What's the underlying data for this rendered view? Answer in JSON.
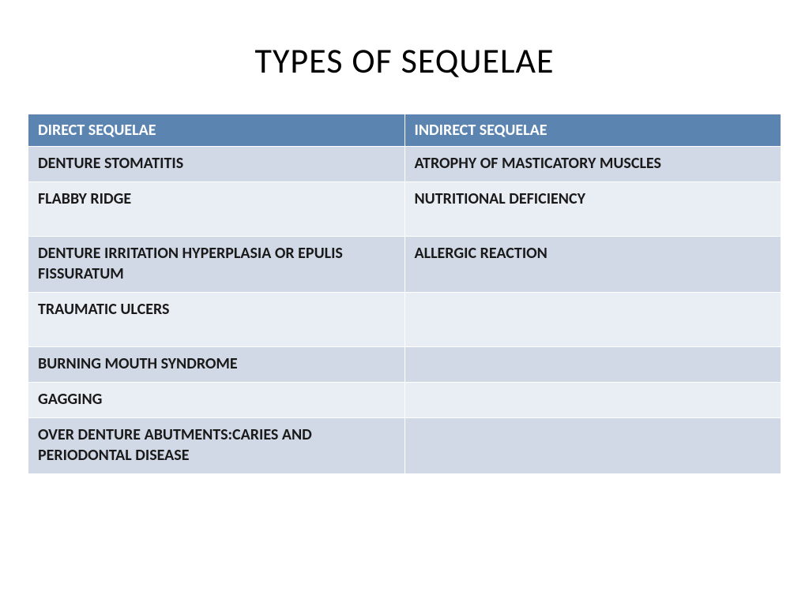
{
  "title": "TYPES OF SEQUELAE",
  "table": {
    "type": "table",
    "header_bg": "#5b84b1",
    "header_fg": "#ffffff",
    "row_bg_odd": "#d1d9e7",
    "row_bg_even": "#e9edf4",
    "cell_fg": "#1a1a1a",
    "border_color": "#ffffff",
    "font_weight": "700",
    "header_fontsize": 20,
    "cell_fontsize": 20,
    "columns": [
      "DIRECT SEQUELAE",
      "INDIRECT SEQUELAE"
    ],
    "rows": [
      [
        "DENTURE STOMATITIS",
        "ATROPHY OF MASTICATORY MUSCLES"
      ],
      [
        "FLABBY RIDGE",
        "NUTRITIONAL DEFICIENCY"
      ],
      [
        "DENTURE IRRITATION HYPERPLASIA OR EPULIS FISSURATUM",
        "ALLERGIC REACTION"
      ],
      [
        "TRAUMATIC ULCERS",
        ""
      ],
      [
        "BURNING MOUTH SYNDROME",
        ""
      ],
      [
        "GAGGING",
        ""
      ],
      [
        "OVER DENTURE ABUTMENTS:CARIES AND PERIODONTAL DISEASE",
        ""
      ]
    ],
    "tall_rows": [
      1,
      3
    ]
  }
}
